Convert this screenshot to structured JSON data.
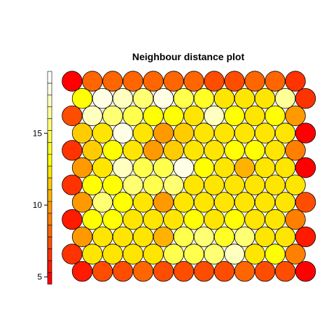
{
  "chart_data": {
    "type": "heatmap",
    "layout": "hexagonal",
    "title": "Neighbour distance plot",
    "rows": 12,
    "cols": 12,
    "colorbar": {
      "range": [
        4.5,
        19.3
      ],
      "ticks": [
        5,
        10,
        15
      ],
      "tick_labels": [
        "5",
        "10",
        "15"
      ],
      "palette": [
        "#ff0000",
        "#ff1a00",
        "#ff3300",
        "#ff4d00",
        "#ff6600",
        "#ff8000",
        "#ff9900",
        "#ffb300",
        "#ffcc00",
        "#ffe600",
        "#ffff00",
        "#ffff26",
        "#ffff4d",
        "#ffff73",
        "#ffff99",
        "#ffffbf",
        "#ffffe6",
        "#ffffff"
      ]
    },
    "values": [
      [
        5.3,
        8.3,
        8.6,
        8.4,
        8.2,
        8.3,
        8.1,
        7.3,
        7.4,
        8.0,
        7.9,
        6.2
      ],
      [
        13.0,
        18.0,
        17.6,
        15.5,
        18.0,
        15.0,
        14.2,
        12.5,
        12.7,
        12.6,
        16.3,
        6.2
      ],
      [
        7.6,
        17.0,
        15.5,
        14.5,
        13.2,
        13.5,
        12.7,
        17.0,
        13.0,
        12.7,
        12.8,
        9.5
      ],
      [
        11.8,
        12.6,
        18.2,
        12.0,
        9.5,
        11.5,
        12.0,
        12.5,
        12.5,
        12.7,
        12.5,
        5.0
      ],
      [
        6.5,
        11.5,
        13.5,
        12.0,
        9.6,
        11.5,
        12.0,
        12.5,
        13.0,
        13.0,
        12.0,
        9.0
      ],
      [
        9.5,
        12.3,
        17.6,
        14.8,
        15.0,
        17.8,
        13.5,
        12.6,
        11.0,
        12.0,
        12.5,
        5.3
      ],
      [
        6.4,
        13.0,
        13.0,
        15.6,
        15.0,
        15.8,
        12.5,
        12.5,
        12.5,
        12.5,
        12.5,
        12.2
      ],
      [
        9.5,
        15.6,
        13.5,
        12.5,
        9.8,
        12.5,
        12.5,
        12.0,
        12.5,
        12.5,
        12.5,
        7.2
      ],
      [
        5.8,
        13.5,
        13.5,
        12.5,
        12.5,
        12.5,
        13.5,
        12.5,
        12.8,
        12.5,
        12.5,
        9.3
      ],
      [
        9.5,
        12.0,
        12.5,
        12.5,
        11.0,
        15.0,
        15.8,
        14.3,
        16.0,
        12.5,
        12.5,
        5.5
      ],
      [
        6.4,
        12.5,
        12.5,
        12.5,
        12.5,
        14.6,
        14.9,
        15.5,
        17.0,
        12.5,
        13.0,
        9.3
      ],
      [
        5.6,
        7.4,
        7.4,
        8.6,
        7.2,
        7.2,
        7.5,
        7.2,
        8.5,
        7.2,
        7.3,
        5.0
      ]
    ]
  }
}
